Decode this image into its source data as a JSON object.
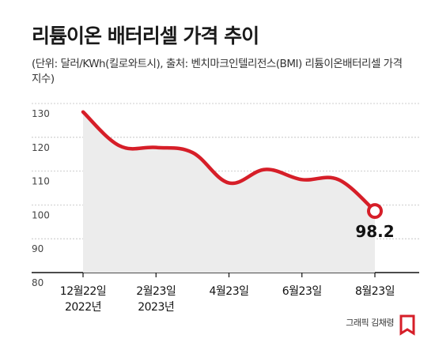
{
  "title": "리튬이온 배터리셀 가격 추이",
  "subtitle": "(단위: 달러/KWh(킬로와트시), 출처: 벤치마크인텔리전스(BMI) 리튬이온배터리셀 가격지수)",
  "credit": "그래픽 김채령",
  "colors": {
    "line": "#d61e28",
    "area": "#ececec",
    "grid": "#bdbdbd",
    "axis": "#111111"
  },
  "chart_data": {
    "type": "area",
    "title": "리튬이온 배터리셀 가격 추이",
    "xlabel": "",
    "ylabel": "",
    "ylim": [
      80,
      130
    ],
    "yticks": [
      80,
      90,
      100,
      110,
      120,
      130
    ],
    "grid": true,
    "xticks": [
      {
        "i": 0,
        "label": [
          "12월22일",
          "2022년"
        ]
      },
      {
        "i": 2,
        "label": [
          "2월23일",
          "2023년"
        ]
      },
      {
        "i": 4,
        "label": [
          "4월23일"
        ]
      },
      {
        "i": 6,
        "label": [
          "6월23일"
        ]
      },
      {
        "i": 8,
        "label": [
          "8월23일"
        ]
      }
    ],
    "series": [
      {
        "x": [
          "2022-12",
          "2023-01",
          "2023-02",
          "2023-03",
          "2023-04",
          "2023-05",
          "2023-06",
          "2023-07",
          "2023-08"
        ],
        "values": [
          127.5,
          117.5,
          117,
          115.5,
          106.5,
          110.5,
          107.5,
          107.5,
          98.2
        ]
      }
    ],
    "annotations": [
      {
        "i": 8,
        "text": "98.2"
      }
    ]
  }
}
